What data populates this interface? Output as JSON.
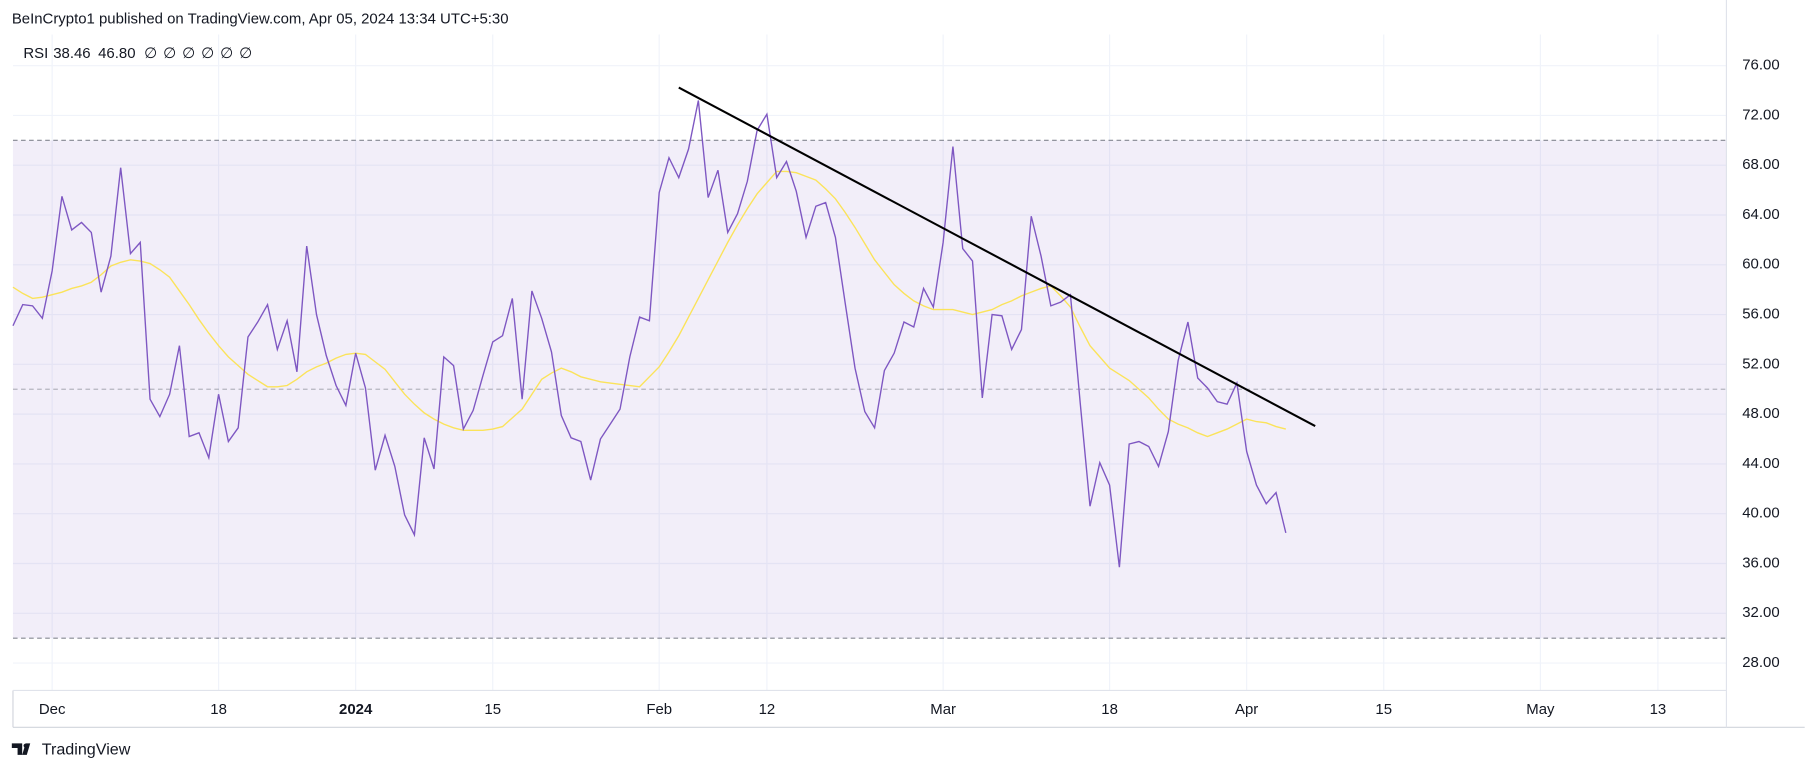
{
  "header": {
    "text": "BeInCrypto1 published on TradingView.com, Apr 05, 2024 13:34 UTC+5:30"
  },
  "footer": {
    "brand": "TradingView"
  },
  "chart_data": {
    "type": "line",
    "legend": {
      "title": "RSI",
      "values": [
        {
          "value": 38.46,
          "label": "38.46"
        },
        {
          "value": 46.8,
          "label": "46.80"
        }
      ],
      "placeholders": [
        "∅",
        "∅",
        "∅",
        "∅",
        "∅",
        "∅"
      ]
    },
    "x": [
      "2023-11-27",
      "2023-11-28",
      "2023-11-29",
      "2023-11-30",
      "2023-12-01",
      "2023-12-02",
      "2023-12-03",
      "2023-12-04",
      "2023-12-05",
      "2023-12-06",
      "2023-12-07",
      "2023-12-08",
      "2023-12-09",
      "2023-12-10",
      "2023-12-11",
      "2023-12-12",
      "2023-12-13",
      "2023-12-14",
      "2023-12-15",
      "2023-12-16",
      "2023-12-17",
      "2023-12-18",
      "2023-12-19",
      "2023-12-20",
      "2023-12-21",
      "2023-12-22",
      "2023-12-23",
      "2023-12-24",
      "2023-12-25",
      "2023-12-26",
      "2023-12-27",
      "2023-12-28",
      "2023-12-29",
      "2023-12-30",
      "2023-12-31",
      "2024-01-01",
      "2024-01-02",
      "2024-01-03",
      "2024-01-04",
      "2024-01-05",
      "2024-01-06",
      "2024-01-07",
      "2024-01-08",
      "2024-01-09",
      "2024-01-10",
      "2024-01-11",
      "2024-01-12",
      "2024-01-13",
      "2024-01-14",
      "2024-01-15",
      "2024-01-16",
      "2024-01-17",
      "2024-01-18",
      "2024-01-19",
      "2024-01-20",
      "2024-01-21",
      "2024-01-22",
      "2024-01-23",
      "2024-01-24",
      "2024-01-25",
      "2024-01-26",
      "2024-01-27",
      "2024-01-28",
      "2024-01-29",
      "2024-01-30",
      "2024-01-31",
      "2024-02-01",
      "2024-02-02",
      "2024-02-03",
      "2024-02-04",
      "2024-02-05",
      "2024-02-06",
      "2024-02-07",
      "2024-02-08",
      "2024-02-09",
      "2024-02-10",
      "2024-02-11",
      "2024-02-12",
      "2024-02-13",
      "2024-02-14",
      "2024-02-15",
      "2024-02-16",
      "2024-02-17",
      "2024-02-18",
      "2024-02-19",
      "2024-02-20",
      "2024-02-21",
      "2024-02-22",
      "2024-02-23",
      "2024-02-24",
      "2024-02-25",
      "2024-02-26",
      "2024-02-27",
      "2024-02-28",
      "2024-02-29",
      "2024-03-01",
      "2024-03-02",
      "2024-03-03",
      "2024-03-04",
      "2024-03-05",
      "2024-03-06",
      "2024-03-07",
      "2024-03-08",
      "2024-03-09",
      "2024-03-10",
      "2024-03-11",
      "2024-03-12",
      "2024-03-13",
      "2024-03-14",
      "2024-03-15",
      "2024-03-16",
      "2024-03-17",
      "2024-03-18",
      "2024-03-19",
      "2024-03-20",
      "2024-03-21",
      "2024-03-22",
      "2024-03-23",
      "2024-03-24",
      "2024-03-25",
      "2024-03-26",
      "2024-03-27",
      "2024-03-28",
      "2024-03-29",
      "2024-03-30",
      "2024-03-31",
      "2024-04-01",
      "2024-04-02",
      "2024-04-03",
      "2024-04-04",
      "2024-04-05"
    ],
    "series": [
      {
        "name": "RSI",
        "color": "#7e57c2",
        "values": [
          55.1,
          56.8,
          56.7,
          55.7,
          59.5,
          65.5,
          62.8,
          63.4,
          62.6,
          57.8,
          60.7,
          67.8,
          60.9,
          61.8,
          49.2,
          47.8,
          49.6,
          53.5,
          46.2,
          46.5,
          44.5,
          49.6,
          45.8,
          46.9,
          54.2,
          55.4,
          56.8,
          53.2,
          55.5,
          51.4,
          61.5,
          56.0,
          52.7,
          50.3,
          48.7,
          52.9,
          50.1,
          43.5,
          46.3,
          43.8,
          39.9,
          38.3,
          46.1,
          43.6,
          52.6,
          51.9,
          46.8,
          48.3,
          51.1,
          53.8,
          54.3,
          57.3,
          49.2,
          57.9,
          55.7,
          53.0,
          47.9,
          46.1,
          45.8,
          42.7,
          46.0,
          47.2,
          48.4,
          52.6,
          55.8,
          55.5,
          65.8,
          68.6,
          67.0,
          69.3,
          73.2,
          65.4,
          67.6,
          62.6,
          64.1,
          66.7,
          70.8,
          72.1,
          67.0,
          68.3,
          65.9,
          62.2,
          64.7,
          65.0,
          62.2,
          56.9,
          51.7,
          48.2,
          46.9,
          51.5,
          52.9,
          55.4,
          55.0,
          58.1,
          56.6,
          61.8,
          69.5,
          61.3,
          60.3,
          49.3,
          56.0,
          55.9,
          53.2,
          54.8,
          63.9,
          60.7,
          56.7,
          57.0,
          57.6,
          48.9,
          40.6,
          44.1,
          42.3,
          35.7,
          45.6,
          45.8,
          45.4,
          43.8,
          46.6,
          52.3,
          55.4,
          50.9,
          50.1,
          49.0,
          48.8,
          50.5,
          45.0,
          42.3,
          40.8,
          41.7,
          38.46
        ]
      },
      {
        "color": "#fbe35a",
        "values": [
          58.2,
          57.7,
          57.3,
          57.4,
          57.6,
          57.8,
          58.1,
          58.3,
          58.6,
          59.2,
          59.9,
          60.2,
          60.4,
          60.3,
          60.1,
          59.6,
          59.0,
          57.9,
          56.8,
          55.6,
          54.5,
          53.5,
          52.6,
          51.9,
          51.2,
          50.7,
          50.2,
          50.2,
          50.3,
          50.8,
          51.4,
          51.8,
          52.1,
          52.5,
          52.8,
          52.9,
          52.8,
          52.2,
          51.6,
          50.6,
          49.6,
          48.8,
          48.1,
          47.6,
          47.2,
          46.9,
          46.7,
          46.7,
          46.7,
          46.8,
          47.0,
          47.7,
          48.4,
          49.6,
          50.8,
          51.3,
          51.7,
          51.4,
          51.0,
          50.8,
          50.6,
          50.5,
          50.4,
          50.3,
          50.2,
          51.0,
          51.8,
          53.0,
          54.3,
          55.8,
          57.3,
          58.8,
          60.3,
          61.8,
          63.2,
          64.5,
          65.7,
          66.6,
          67.5,
          67.5,
          67.4,
          67.1,
          66.8,
          66.1,
          65.3,
          64.2,
          63.0,
          61.7,
          60.4,
          59.4,
          58.4,
          57.7,
          57.1,
          56.7,
          56.4,
          56.4,
          56.4,
          56.2,
          56.0,
          56.2,
          56.4,
          56.8,
          57.1,
          57.5,
          57.8,
          58.1,
          58.3,
          57.5,
          56.6,
          55.0,
          53.5,
          52.6,
          51.7,
          51.2,
          50.7,
          50.0,
          49.3,
          48.4,
          47.6,
          47.2,
          46.9,
          46.5,
          46.2,
          46.5,
          46.8,
          47.2,
          47.6,
          47.4,
          47.3,
          47.0,
          46.8
        ]
      }
    ],
    "xlim": [
      "2023-11-27",
      "2024-05-20"
    ],
    "xticks": [
      {
        "value": "2023-12-01",
        "label": "Dec"
      },
      {
        "value": "2023-12-18",
        "label": "18"
      },
      {
        "value": "2024-01-01",
        "label": "2024"
      },
      {
        "value": "2024-01-15",
        "label": "15"
      },
      {
        "value": "2024-02-01",
        "label": "Feb"
      },
      {
        "value": "2024-02-12",
        "label": "12"
      },
      {
        "value": "2024-03-01",
        "label": "Mar"
      },
      {
        "value": "2024-03-18",
        "label": "18"
      },
      {
        "value": "2024-04-01",
        "label": "Apr"
      },
      {
        "value": "2024-04-15",
        "label": "15"
      },
      {
        "value": "2024-05-01",
        "label": "May"
      },
      {
        "value": "2024-05-13",
        "label": "13"
      }
    ],
    "ylim": [
      25.8,
      78.5
    ],
    "yticks": [
      {
        "value": 28,
        "label": "28.00"
      },
      {
        "value": 32,
        "label": "32.00"
      },
      {
        "value": 36,
        "label": "36.00"
      },
      {
        "value": 40,
        "label": "40.00"
      },
      {
        "value": 44,
        "label": "44.00"
      },
      {
        "value": 48,
        "label": "48.00"
      },
      {
        "value": 52,
        "label": "52.00"
      },
      {
        "value": 56,
        "label": "56.00"
      },
      {
        "value": 60,
        "label": "60.00"
      },
      {
        "value": 64,
        "label": "64.00"
      },
      {
        "value": 68,
        "label": "68.00"
      },
      {
        "value": 72,
        "label": "72.00"
      },
      {
        "value": 76,
        "label": "76.00"
      }
    ],
    "grid": true,
    "bands": {
      "upper": 70,
      "middle": 50,
      "lower": 30,
      "color": "#7e57c2"
    },
    "trendline": {
      "color": "#000000",
      "x": [
        "2024-02-03",
        "2024-04-08"
      ],
      "y": [
        74.24,
        47.04
      ]
    }
  }
}
